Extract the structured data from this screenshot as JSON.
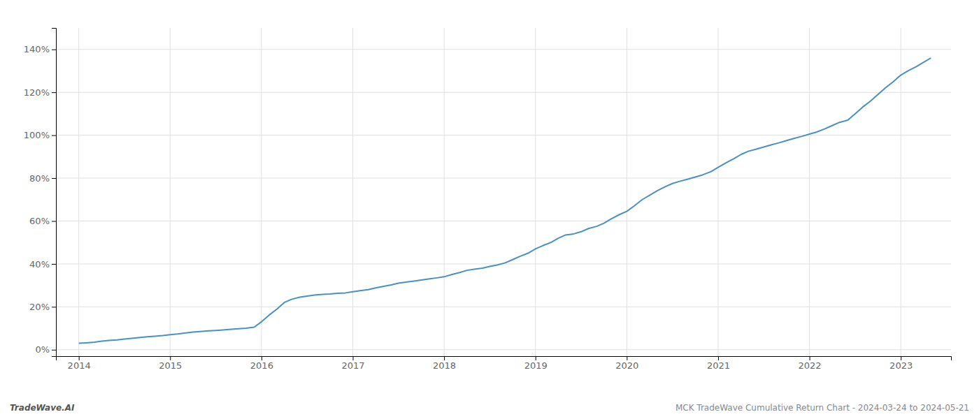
{
  "chart_data": {
    "type": "line",
    "annotations": [
      "TradeWave.AI",
      "MCK TradeWave Cumulative Return Chart - 2024-03-24 to 2024-05-21"
    ],
    "color": "#4a90c4",
    "grid": true,
    "x": [
      2014.0,
      2014.08,
      2014.17,
      2014.25,
      2014.33,
      2014.42,
      2014.5,
      2014.58,
      2014.67,
      2014.75,
      2014.83,
      2014.92,
      2015.0,
      2015.08,
      2015.17,
      2015.25,
      2015.33,
      2015.42,
      2015.5,
      2015.58,
      2015.67,
      2015.75,
      2015.83,
      2015.92,
      2016.0,
      2016.08,
      2016.17,
      2016.25,
      2016.33,
      2016.42,
      2016.5,
      2016.58,
      2016.67,
      2016.75,
      2016.83,
      2016.92,
      2017.0,
      2017.08,
      2017.17,
      2017.25,
      2017.33,
      2017.42,
      2017.5,
      2017.58,
      2017.67,
      2017.75,
      2017.83,
      2017.92,
      2018.0,
      2018.08,
      2018.17,
      2018.25,
      2018.33,
      2018.42,
      2018.5,
      2018.58,
      2018.67,
      2018.75,
      2018.83,
      2018.92,
      2019.0,
      2019.08,
      2019.17,
      2019.25,
      2019.33,
      2019.42,
      2019.5,
      2019.58,
      2019.67,
      2019.75,
      2019.83,
      2019.92,
      2020.0,
      2020.08,
      2020.17,
      2020.25,
      2020.33,
      2020.42,
      2020.5,
      2020.58,
      2020.67,
      2020.75,
      2020.83,
      2020.92,
      2021.0,
      2021.08,
      2021.17,
      2021.25,
      2021.33,
      2021.42,
      2021.5,
      2021.58,
      2021.67,
      2021.75,
      2021.83,
      2021.92,
      2022.0,
      2022.08,
      2022.17,
      2022.25,
      2022.33,
      2022.42,
      2022.5,
      2022.58,
      2022.67,
      2022.75,
      2022.83,
      2022.92,
      2023.0,
      2023.08,
      2023.17,
      2023.25,
      2023.33
    ],
    "values": [
      3.0,
      3.2,
      3.5,
      4.0,
      4.3,
      4.6,
      5.0,
      5.3,
      5.7,
      6.0,
      6.3,
      6.6,
      7.0,
      7.3,
      7.8,
      8.2,
      8.5,
      8.8,
      9.0,
      9.2,
      9.5,
      9.8,
      10.0,
      10.5,
      13.0,
      16.0,
      19.0,
      22.0,
      23.5,
      24.5,
      25.0,
      25.5,
      25.8,
      26.0,
      26.3,
      26.5,
      27.0,
      27.5,
      28.0,
      28.8,
      29.5,
      30.2,
      31.0,
      31.5,
      32.0,
      32.5,
      33.0,
      33.5,
      34.0,
      35.0,
      36.0,
      37.0,
      37.5,
      38.0,
      38.8,
      39.5,
      40.5,
      42.0,
      43.5,
      45.0,
      47.0,
      48.5,
      50.0,
      52.0,
      53.5,
      54.0,
      55.0,
      56.5,
      57.5,
      59.0,
      61.0,
      63.0,
      64.5,
      67.0,
      70.0,
      72.0,
      74.0,
      76.0,
      77.5,
      78.5,
      79.5,
      80.5,
      81.5,
      83.0,
      85.0,
      87.0,
      89.0,
      91.0,
      92.5,
      93.5,
      94.5,
      95.5,
      96.5,
      97.5,
      98.5,
      99.5,
      100.5,
      101.5,
      103.0,
      104.5,
      106.0,
      107.0,
      110.0,
      113.0,
      116.0,
      119.0,
      122.0,
      125.0,
      128.0,
      130.0,
      132.0,
      134.0,
      136.0
    ],
    "xlim": [
      2013.75,
      2023.55
    ],
    "ylim": [
      -3,
      150
    ],
    "xticks": [
      2014,
      2015,
      2016,
      2017,
      2018,
      2019,
      2020,
      2021,
      2022,
      2023
    ],
    "yticks": [
      {
        "value": 0,
        "label": "0%"
      },
      {
        "value": 20,
        "label": "20%"
      },
      {
        "value": 40,
        "label": "40%"
      },
      {
        "value": 60,
        "label": "60%"
      },
      {
        "value": 80,
        "label": "80%"
      },
      {
        "value": 100,
        "label": "100%"
      },
      {
        "value": 120,
        "label": "120%"
      },
      {
        "value": 140,
        "label": "140%"
      }
    ]
  }
}
